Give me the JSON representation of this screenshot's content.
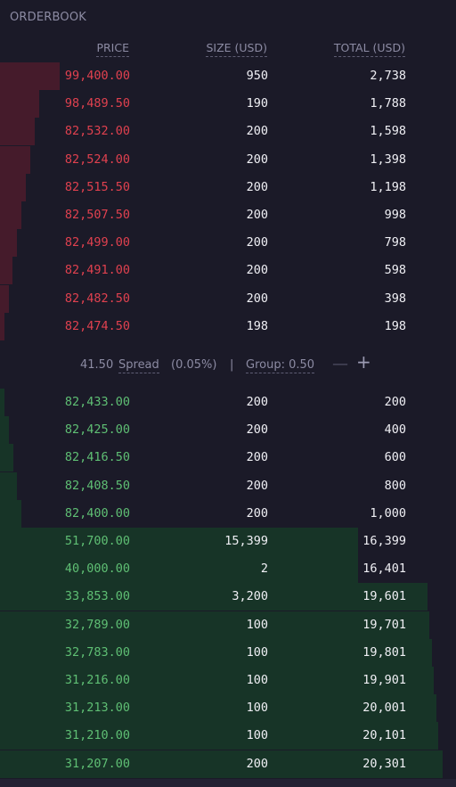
{
  "title": "ORDERBOOK",
  "headers": {
    "price": "PRICE",
    "size": "SIZE (USD)",
    "total": "TOTAL (USD)"
  },
  "colors": {
    "ask": "#e0414f",
    "bid": "#5fbf74",
    "ask_depth": "#451b2b",
    "bid_depth": "#173427",
    "background": "#1b1a28"
  },
  "asks": [
    {
      "price": "99,400.00",
      "size": "950",
      "total": "2,738",
      "depth": 0.135
    },
    {
      "price": "98,489.50",
      "size": "190",
      "total": "1,788",
      "depth": 0.089
    },
    {
      "price": "82,532.00",
      "size": "200",
      "total": "1,598",
      "depth": 0.079
    },
    {
      "price": "82,524.00",
      "size": "200",
      "total": "1,398",
      "depth": 0.069
    },
    {
      "price": "82,515.50",
      "size": "200",
      "total": "1,198",
      "depth": 0.059
    },
    {
      "price": "82,507.50",
      "size": "200",
      "total": "998",
      "depth": 0.049
    },
    {
      "price": "82,499.00",
      "size": "200",
      "total": "798",
      "depth": 0.039
    },
    {
      "price": "82,491.00",
      "size": "200",
      "total": "598",
      "depth": 0.029
    },
    {
      "price": "82,482.50",
      "size": "200",
      "total": "398",
      "depth": 0.02
    },
    {
      "price": "82,474.50",
      "size": "198",
      "total": "198",
      "depth": 0.01
    }
  ],
  "spread": {
    "value": "41.50",
    "label": "Spread",
    "percent": "(0.05%)",
    "separator": "|",
    "group": "Group: 0.50",
    "minus": "—",
    "plus": "+"
  },
  "bids": [
    {
      "price": "82,433.00",
      "size": "200",
      "total": "200",
      "depth": 0.01
    },
    {
      "price": "82,425.00",
      "size": "200",
      "total": "400",
      "depth": 0.02
    },
    {
      "price": "82,416.50",
      "size": "200",
      "total": "600",
      "depth": 0.03
    },
    {
      "price": "82,408.50",
      "size": "200",
      "total": "800",
      "depth": 0.039
    },
    {
      "price": "82,400.00",
      "size": "200",
      "total": "1,000",
      "depth": 0.049
    },
    {
      "price": "51,700.00",
      "size": "15,399",
      "total": "16,399",
      "depth": 0.808
    },
    {
      "price": "40,000.00",
      "size": "2",
      "total": "16,401",
      "depth": 0.808
    },
    {
      "price": "33,853.00",
      "size": "3,200",
      "total": "19,601",
      "depth": 0.966
    },
    {
      "price": "32,789.00",
      "size": "100",
      "total": "19,701",
      "depth": 0.97
    },
    {
      "price": "32,783.00",
      "size": "100",
      "total": "19,801",
      "depth": 0.975
    },
    {
      "price": "31,216.00",
      "size": "100",
      "total": "19,901",
      "depth": 0.98
    },
    {
      "price": "31,213.00",
      "size": "100",
      "total": "20,001",
      "depth": 0.985
    },
    {
      "price": "31,210.00",
      "size": "100",
      "total": "20,101",
      "depth": 0.99
    },
    {
      "price": "31,207.00",
      "size": "200",
      "total": "20,301",
      "depth": 1.0
    }
  ]
}
